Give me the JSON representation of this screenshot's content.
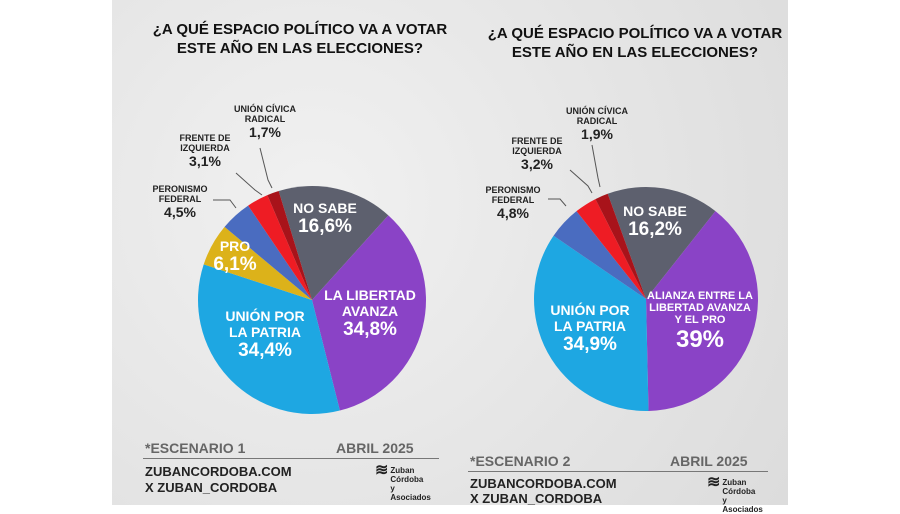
{
  "chart_data": [
    {
      "type": "pie",
      "title": "¿A QUÉ ESPACIO POLÍTICO VA A VOTAR ESTE AÑO EN LAS ELECCIONES?",
      "slices": [
        {
          "label": "NO SABE",
          "value": 16.6,
          "text": "16,6%",
          "color": "#5d606e"
        },
        {
          "label": "LA LIBERTAD AVANZA",
          "value": 34.8,
          "text": "34,8%",
          "color": "#8a43c6"
        },
        {
          "label": "UNIÓN POR LA PATRIA",
          "value": 34.4,
          "text": "34,4%",
          "color": "#1ea7e2"
        },
        {
          "label": "PRO",
          "value": 6.1,
          "text": "6,1%",
          "color": "#dcb21a"
        },
        {
          "label": "PERONISMO FEDERAL",
          "value": 4.5,
          "text": "4,5%",
          "color": "#4a6cc0"
        },
        {
          "label": "FRENTE DE IZQUIERDA",
          "value": 3.1,
          "text": "3,1%",
          "color": "#ee1c24"
        },
        {
          "label": "UNIÓN CÍVICA RADICAL",
          "value": 1.7,
          "text": "1,7%",
          "color": "#a8131a"
        }
      ],
      "scenario": "*ESCENARIO 1",
      "date": "ABRIL 2025"
    },
    {
      "type": "pie",
      "title": "¿A QUÉ ESPACIO POLÍTICO VA A VOTAR ESTE AÑO EN LAS ELECCIONES?",
      "slices": [
        {
          "label": "NO SABE",
          "value": 16.2,
          "text": "16,2%",
          "color": "#5d606e"
        },
        {
          "label": "ALIANZA ENTRE LA LIBERTAD AVANZA Y EL PRO",
          "value": 39,
          "text": "39%",
          "color": "#8a43c6"
        },
        {
          "label": "UNIÓN POR LA PATRIA",
          "value": 34.9,
          "text": "34,9%",
          "color": "#1ea7e2"
        },
        {
          "label": "PERONISMO FEDERAL",
          "value": 4.8,
          "text": "4,8%",
          "color": "#4a6cc0"
        },
        {
          "label": "FRENTE DE IZQUIERDA",
          "value": 3.2,
          "text": "3,2%",
          "color": "#ee1c24"
        },
        {
          "label": "UNIÓN CÍVICA RADICAL",
          "value": 1.9,
          "text": "1,9%",
          "color": "#a8131a"
        }
      ],
      "scenario": "*ESCENARIO 2",
      "date": "ABRIL 2025"
    }
  ],
  "footer": {
    "site": "ZUBANCORDOBA.COM",
    "x": "X ZUBAN_CORDOBA",
    "logo": "Zuban Córdoba y Asociados"
  }
}
